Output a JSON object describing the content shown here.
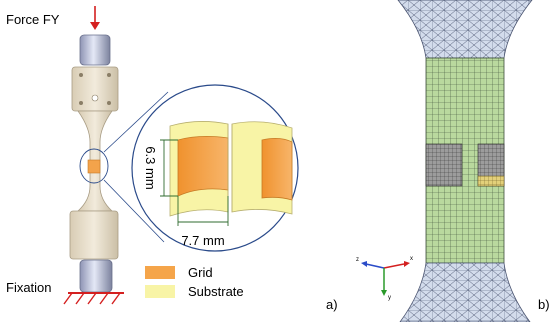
{
  "panel_a": {
    "force_label": "Force FY",
    "fixation_label": "Fixation",
    "height_dim": "6.3 mm",
    "width_dim": "7.7 mm",
    "legend": [
      {
        "label": "Grid",
        "color": "#f5a54a"
      },
      {
        "label": "Substrate",
        "color": "#f8f4a6"
      }
    ],
    "panel_letter": "a)"
  },
  "panel_b": {
    "panel_letter": "b)",
    "axes": {
      "x": "x",
      "y": "y",
      "z": "z"
    },
    "colors": {
      "mesh_green": "#b8d8a0",
      "mesh_blue": "#cfd8ea",
      "mesh_line": "#2e3a2e",
      "grid": "#8a8a8a",
      "substrate": "#e8d98a"
    }
  },
  "colors": {
    "specimen_beige": "#ece4d4",
    "specimen_shadow": "#c9bea8",
    "grip_blue": "#c2c8e4",
    "force_arrow": "#d42020",
    "hatch": "#d42020",
    "zoom_circle": "#2a4a8a"
  }
}
